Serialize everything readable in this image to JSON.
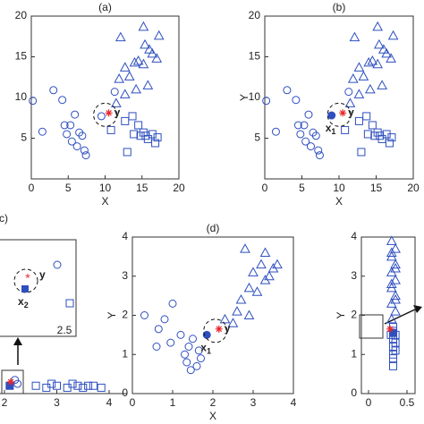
{
  "chart_data": [
    {
      "type": "scatter",
      "title": "(a)",
      "xlabel": "X",
      "xlim": [
        0,
        20
      ],
      "ylim": [
        0,
        20
      ],
      "xticks": [
        0,
        5,
        10,
        15,
        20
      ],
      "yticks": [
        5,
        10,
        15,
        20
      ],
      "highlight": true,
      "series": [
        {
          "marker": "circle",
          "color": "#2e4fbf",
          "x": [
            0.2,
            1.5,
            3.0,
            4.2,
            4.5,
            4.8,
            5.5,
            5.9,
            6.2,
            6.5,
            6.9,
            7.2,
            7.4,
            5.3,
            9.5,
            11.3
          ],
          "values": [
            9.6,
            5.8,
            10.9,
            9.7,
            6.6,
            5.5,
            4.6,
            7.9,
            4.0,
            5.7,
            5.3,
            3.5,
            2.9,
            6.6,
            7.7,
            10.7
          ]
        },
        {
          "marker": "triangle",
          "color": "#2e4fbf",
          "x": [
            12.1,
            15.2,
            17.3,
            15.4,
            16.0,
            16.4,
            17.0,
            14.0,
            14.5,
            15.2,
            12.7,
            13.3,
            11.9,
            14.2,
            12.7,
            15.8,
            11.5
          ],
          "values": [
            17.4,
            18.7,
            17.6,
            16.5,
            15.9,
            15.4,
            14.8,
            14.3,
            14.5,
            14.1,
            13.7,
            12.6,
            12.3,
            11.0,
            10.4,
            11.5,
            9.3
          ]
        },
        {
          "marker": "square",
          "color": "#2e4fbf",
          "x": [
            10.8,
            12.7,
            13.7,
            14.5,
            15.2,
            15.5,
            16.4,
            17.1,
            15.8,
            14.8,
            13.0,
            16.8,
            13.9
          ],
          "values": [
            6.0,
            7.1,
            7.7,
            6.6,
            5.7,
            5.3,
            5.5,
            5.1,
            4.9,
            5.3,
            3.3,
            4.4,
            5.5
          ]
        },
        {
          "marker": "star",
          "color": "#e8262a",
          "label": "y",
          "x": [
            10.5
          ],
          "values": [
            8.1
          ]
        }
      ]
    },
    {
      "type": "scatter",
      "title": "(b)",
      "xlabel": "X",
      "ylabel": "Y",
      "xlim": [
        0,
        20
      ],
      "ylim": [
        0,
        20
      ],
      "xticks": [
        0,
        5,
        10,
        15,
        20
      ],
      "yticks": [
        5,
        10,
        15,
        20
      ],
      "highlight": true,
      "series": [
        {
          "marker": "circle",
          "color": "#2e4fbf",
          "x": [
            0.2,
            1.5,
            3.0,
            4.2,
            4.5,
            4.8,
            5.5,
            5.9,
            6.2,
            6.5,
            6.9,
            7.2,
            7.4,
            5.3,
            11.3
          ],
          "values": [
            9.6,
            5.8,
            10.9,
            9.7,
            6.6,
            5.5,
            4.6,
            7.9,
            4.0,
            5.7,
            5.3,
            3.5,
            2.9,
            6.6,
            10.7
          ]
        },
        {
          "marker": "triangle",
          "color": "#2e4fbf",
          "x": [
            12.1,
            15.2,
            17.3,
            15.4,
            16.0,
            16.4,
            17.0,
            14.0,
            14.5,
            15.2,
            12.7,
            13.3,
            11.9,
            14.2,
            12.7,
            15.8,
            11.5
          ],
          "values": [
            17.4,
            18.7,
            17.6,
            16.5,
            15.9,
            15.4,
            14.8,
            14.3,
            14.5,
            14.1,
            13.7,
            12.6,
            12.3,
            11.0,
            10.4,
            11.5,
            9.3
          ]
        },
        {
          "marker": "square",
          "color": "#2e4fbf",
          "x": [
            10.8,
            12.7,
            13.7,
            14.5,
            15.2,
            15.5,
            16.4,
            17.1,
            15.8,
            14.8,
            13.0,
            16.8,
            13.9
          ],
          "values": [
            6.0,
            7.1,
            7.7,
            6.6,
            5.7,
            5.3,
            5.5,
            5.1,
            4.9,
            5.3,
            3.3,
            4.4,
            5.5
          ]
        },
        {
          "marker": "circle",
          "filled": true,
          "color": "#2e4fbf",
          "label": "x",
          "label_sub": "1",
          "x": [
            9.0
          ],
          "values": [
            7.8
          ]
        },
        {
          "marker": "star",
          "color": "#e8262a",
          "label": "y",
          "x": [
            10.5
          ],
          "values": [
            8.1
          ]
        }
      ]
    },
    {
      "type": "scatter",
      "title": "(c)",
      "xlim": [
        2,
        4
      ],
      "ylim": [
        0,
        4
      ],
      "xticks": [
        2,
        3,
        4
      ],
      "yticks": [],
      "inset_tick": "2.5",
      "inset_labels": [
        "y",
        "x",
        "2"
      ],
      "series": [
        {
          "marker": "circle",
          "color": "#2e4fbf",
          "x": [
            2.2,
            2.25
          ],
          "values": [
            0.35,
            0.25
          ]
        },
        {
          "marker": "square",
          "color": "#2e4fbf",
          "x": [
            2.6,
            2.8,
            2.9,
            3.0,
            3.2,
            3.3,
            3.4,
            3.5,
            3.6,
            3.7,
            3.85
          ],
          "values": [
            0.2,
            0.15,
            0.25,
            0.2,
            0.15,
            0.25,
            0.2,
            0.15,
            0.2,
            0.2,
            0.15
          ]
        },
        {
          "marker": "square",
          "filled": true,
          "color": "#2e4fbf",
          "x": [
            2.1
          ],
          "values": [
            0.2
          ]
        },
        {
          "marker": "star",
          "color": "#e8262a",
          "x": [
            2.12
          ],
          "values": [
            0.3
          ]
        }
      ]
    },
    {
      "type": "scatter",
      "title": "(d)",
      "xlabel": "X",
      "ylabel": "Y",
      "xlim": [
        0,
        4
      ],
      "ylim": [
        0,
        4
      ],
      "xticks": [
        0,
        1,
        2,
        3,
        4
      ],
      "yticks": [
        0,
        1,
        2,
        3,
        4
      ],
      "highlight": true,
      "series": [
        {
          "marker": "circle",
          "color": "#2e4fbf",
          "x": [
            0.3,
            0.65,
            0.95,
            1.0,
            0.8,
            1.2,
            1.3,
            1.4,
            1.5,
            1.35,
            1.6,
            1.7,
            1.65,
            1.45,
            0.6
          ],
          "values": [
            2.0,
            1.65,
            1.3,
            2.3,
            1.9,
            1.5,
            1.0,
            1.2,
            1.4,
            0.8,
            0.7,
            0.9,
            1.1,
            0.6,
            1.2
          ]
        },
        {
          "marker": "triangle",
          "color": "#2e4fbf",
          "x": [
            2.8,
            3.3,
            3.2,
            3.5,
            3.4,
            3.6,
            3.0,
            2.9,
            2.7,
            3.1,
            2.6,
            2.5,
            2.9,
            2.3,
            3.3
          ],
          "values": [
            3.7,
            3.6,
            3.3,
            3.2,
            3.0,
            3.3,
            3.1,
            2.7,
            2.4,
            2.6,
            2.1,
            1.8,
            2.0,
            1.9,
            2.9
          ]
        },
        {
          "marker": "circle",
          "filled": true,
          "color": "#2e4fbf",
          "label": "x",
          "label_sub": "1",
          "x": [
            1.85
          ],
          "values": [
            1.5
          ]
        },
        {
          "marker": "star",
          "color": "#e8262a",
          "label": "y",
          "x": [
            2.15
          ],
          "values": [
            1.65
          ]
        }
      ]
    },
    {
      "type": "scatter",
      "ylabel": "Y",
      "xlim": [
        0,
        0.5
      ],
      "ylim": [
        0,
        4
      ],
      "xticks": [
        0,
        0.5
      ],
      "yticks": [
        0,
        1,
        2,
        3,
        4
      ],
      "series": [
        {
          "marker": "triangle",
          "color": "#2e4fbf",
          "x": [
            0.3,
            0.35,
            0.3,
            0.35,
            0.3,
            0.35,
            0.3,
            0.35,
            0.3,
            0.35,
            0.3,
            0.35,
            0.3,
            0.35,
            0.3
          ],
          "values": [
            3.9,
            3.7,
            3.5,
            3.3,
            3.1,
            2.9,
            2.7,
            2.5,
            2.3,
            2.1,
            3.6,
            3.2,
            2.8,
            2.4,
            1.9
          ]
        },
        {
          "marker": "square",
          "color": "#2e4fbf",
          "x": [
            0.32,
            0.32,
            0.35,
            0.32,
            0.35,
            0.32,
            0.35,
            0.32,
            0.32,
            0.32,
            0.29
          ],
          "values": [
            1.7,
            1.6,
            1.5,
            1.4,
            1.3,
            1.2,
            1.1,
            1.0,
            0.9,
            0.7,
            1.5
          ]
        },
        {
          "marker": "square",
          "filled": true,
          "color": "#2e4fbf",
          "x": [
            0.32
          ],
          "values": [
            1.55
          ]
        },
        {
          "marker": "star",
          "color": "#e8262a",
          "x": [
            0.28
          ],
          "values": [
            1.65
          ]
        }
      ]
    }
  ]
}
